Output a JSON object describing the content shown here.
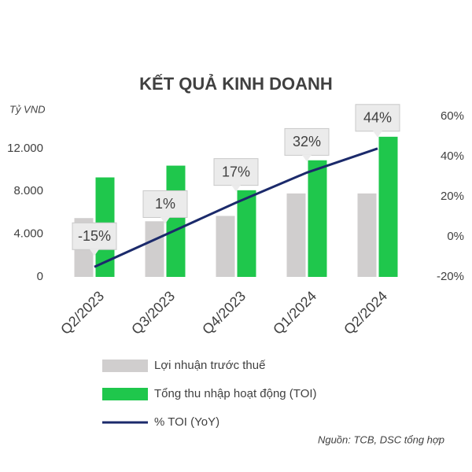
{
  "chart_data": {
    "type": "bar_line",
    "title": "KẾT QUẢ KINH DOANH",
    "y_label": "Tỷ VND",
    "source": "Nguồn: TCB, DSC tổng hợp",
    "categories": [
      "Q2/2023",
      "Q3/2023",
      "Q4/2023",
      "Q1/2024",
      "Q2/2024"
    ],
    "series": [
      {
        "name": "Lợi nhuận trước thuế",
        "color": "#d0cece",
        "values": [
          5500,
          5200,
          5700,
          7800,
          7800
        ]
      },
      {
        "name": "Tổng thu nhập hoạt động (TOI)",
        "color": "#1fc74c",
        "values": [
          9300,
          10400,
          8100,
          10900,
          13100
        ]
      },
      {
        "name": "% TOI (YoY)",
        "color": "#1b2a6b",
        "axis": "y2",
        "values": [
          -15,
          1,
          17,
          32,
          44
        ],
        "value_labels": [
          "-15%",
          "1%",
          "17%",
          "32%",
          "44%"
        ]
      }
    ],
    "ylim": [
      0,
      15000
    ],
    "yticks": [
      0,
      {
        "value": 4000,
        "label": "4.000"
      },
      {
        "value": 8000,
        "label": "8.000"
      },
      {
        "value": 12000,
        "label": "12.000"
      }
    ],
    "y2lim": [
      -20,
      60
    ],
    "y2ticks": [
      {
        "value": -20,
        "label": "-20%"
      },
      {
        "value": 0,
        "label": "0%"
      },
      {
        "value": 20,
        "label": "20%"
      },
      {
        "value": 40,
        "label": "40%"
      },
      {
        "value": 60,
        "label": "60%"
      }
    ],
    "grid": false,
    "legend": "bottom"
  }
}
